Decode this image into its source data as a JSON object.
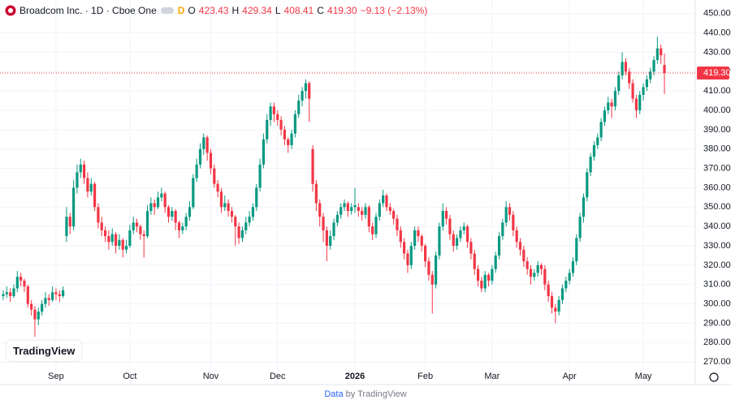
{
  "header": {
    "title": "Broadcom Inc. · 1D · Cboe One",
    "badge": "D",
    "open_label": "O",
    "open": "423.43",
    "high_label": "H",
    "high": "429.34",
    "low_label": "L",
    "low": "408.41",
    "close_label": "C",
    "close": "419.30",
    "change": "−9.13 (−2.13%)"
  },
  "logo": "TradingView",
  "footer": {
    "link": "Data",
    "text": "by TradingView"
  },
  "chart_data": {
    "type": "candlestick",
    "up_color": "#089981",
    "down_color": "#f23645",
    "grid": true,
    "ylim": [
      260,
      457
    ],
    "yticks": [
      {
        "value": 270,
        "label": "270.00"
      },
      {
        "value": 280,
        "label": "280.00"
      },
      {
        "value": 290,
        "label": "290.00"
      },
      {
        "value": 300,
        "label": "300.00"
      },
      {
        "value": 310,
        "label": "310.00"
      },
      {
        "value": 320,
        "label": "320.00"
      },
      {
        "value": 330,
        "label": "330.00"
      },
      {
        "value": 340,
        "label": "340.00"
      },
      {
        "value": 350,
        "label": "350.00"
      },
      {
        "value": 360,
        "label": "360.00"
      },
      {
        "value": 370,
        "label": "370.00"
      },
      {
        "value": 380,
        "label": "380.00"
      },
      {
        "value": 390,
        "label": "390.00"
      },
      {
        "value": 400,
        "label": "400.00"
      },
      {
        "value": 410,
        "label": "410.00"
      },
      {
        "value": 420,
        "label": "420.00"
      },
      {
        "value": 430,
        "label": "430.00"
      },
      {
        "value": 440,
        "label": "440.00"
      },
      {
        "value": 450,
        "label": "450.00"
      }
    ],
    "last_price": {
      "value": 419.3,
      "label": "419.30"
    },
    "categories": [
      null,
      null,
      null,
      null,
      null,
      null,
      null,
      null,
      null,
      null,
      null,
      null,
      null,
      null,
      null,
      "Sep",
      null,
      null,
      null,
      null,
      null,
      null,
      null,
      null,
      null,
      null,
      null,
      null,
      null,
      null,
      null,
      null,
      null,
      null,
      null,
      null,
      "Oct",
      null,
      null,
      null,
      null,
      null,
      null,
      null,
      null,
      null,
      null,
      null,
      null,
      null,
      null,
      null,
      null,
      null,
      null,
      null,
      null,
      null,
      null,
      "Nov",
      null,
      null,
      null,
      null,
      null,
      null,
      null,
      null,
      null,
      null,
      null,
      null,
      null,
      null,
      null,
      null,
      null,
      null,
      "Dec",
      null,
      null,
      null,
      null,
      null,
      null,
      null,
      null,
      null,
      null,
      null,
      null,
      null,
      null,
      null,
      null,
      null,
      null,
      null,
      null,
      null,
      "2026",
      null,
      null,
      null,
      null,
      null,
      null,
      null,
      null,
      null,
      null,
      null,
      null,
      null,
      null,
      null,
      null,
      null,
      null,
      null,
      "Feb",
      null,
      null,
      null,
      null,
      null,
      null,
      null,
      null,
      null,
      null,
      null,
      null,
      null,
      null,
      null,
      null,
      null,
      null,
      "Mar",
      null,
      null,
      null,
      null,
      null,
      null,
      null,
      null,
      null,
      null,
      null,
      null,
      null,
      null,
      null,
      null,
      null,
      null,
      null,
      null,
      null,
      "Apr",
      null,
      null,
      null,
      null,
      null,
      null,
      null,
      null,
      null,
      null,
      null,
      null,
      null,
      null,
      null,
      null,
      null,
      null,
      null,
      null,
      "May",
      null,
      null,
      null,
      null,
      null,
      null
    ],
    "candles": [
      [
        304,
        307,
        302,
        305
      ],
      [
        305,
        309,
        303,
        306
      ],
      [
        306,
        308,
        301,
        304
      ],
      [
        304,
        310,
        303,
        308
      ],
      [
        308,
        317,
        306,
        314
      ],
      [
        314,
        316,
        309,
        312
      ],
      [
        312,
        313,
        306,
        309
      ],
      [
        309,
        310,
        298,
        300
      ],
      [
        300,
        302,
        294,
        297
      ],
      [
        297,
        299,
        283,
        292
      ],
      [
        292,
        298,
        289,
        296
      ],
      [
        296,
        302,
        294,
        300
      ],
      [
        300,
        306,
        298,
        303
      ],
      [
        303,
        305,
        299,
        302
      ],
      [
        302,
        309,
        301,
        306
      ],
      [
        306,
        308,
        302,
        305
      ],
      [
        305,
        307,
        301,
        304
      ],
      [
        304,
        309,
        303,
        307
      ],
      [
        335,
        350,
        332,
        345
      ],
      [
        345,
        347,
        336,
        340
      ],
      [
        340,
        364,
        338,
        360
      ],
      [
        360,
        372,
        357,
        368
      ],
      [
        368,
        375,
        365,
        372
      ],
      [
        372,
        374,
        362,
        365
      ],
      [
        365,
        368,
        355,
        358
      ],
      [
        358,
        365,
        356,
        362
      ],
      [
        362,
        363,
        348,
        350
      ],
      [
        350,
        352,
        339,
        342
      ],
      [
        342,
        345,
        335,
        338
      ],
      [
        338,
        340,
        332,
        335
      ],
      [
        335,
        338,
        328,
        332
      ],
      [
        332,
        339,
        330,
        336
      ],
      [
        336,
        337,
        326,
        330
      ],
      [
        330,
        336,
        328,
        333
      ],
      [
        333,
        334,
        324,
        328
      ],
      [
        328,
        333,
        326,
        330
      ],
      [
        330,
        341,
        329,
        338
      ],
      [
        338,
        345,
        336,
        342
      ],
      [
        342,
        344,
        337,
        340
      ],
      [
        340,
        341,
        333,
        336
      ],
      [
        336,
        338,
        324,
        335
      ],
      [
        335,
        351,
        334,
        348
      ],
      [
        348,
        355,
        346,
        352
      ],
      [
        352,
        354,
        346,
        350
      ],
      [
        350,
        358,
        349,
        355
      ],
      [
        355,
        360,
        353,
        357
      ],
      [
        357,
        358,
        347,
        350
      ],
      [
        350,
        351,
        342,
        345
      ],
      [
        345,
        350,
        343,
        348
      ],
      [
        348,
        349,
        338,
        342
      ],
      [
        342,
        343,
        334,
        338
      ],
      [
        338,
        342,
        336,
        340
      ],
      [
        340,
        347,
        338,
        345
      ],
      [
        345,
        353,
        343,
        350
      ],
      [
        350,
        367,
        349,
        365
      ],
      [
        365,
        375,
        363,
        372
      ],
      [
        372,
        383,
        370,
        380
      ],
      [
        380,
        388,
        377,
        386
      ],
      [
        386,
        387,
        374,
        378
      ],
      [
        378,
        380,
        367,
        370
      ],
      [
        370,
        372,
        360,
        362
      ],
      [
        362,
        364,
        355,
        358
      ],
      [
        358,
        360,
        347,
        350
      ],
      [
        350,
        356,
        348,
        352
      ],
      [
        352,
        354,
        345,
        348
      ],
      [
        348,
        350,
        342,
        345
      ],
      [
        345,
        346,
        330,
        340
      ],
      [
        340,
        342,
        331,
        334
      ],
      [
        334,
        340,
        332,
        338
      ],
      [
        338,
        345,
        336,
        342
      ],
      [
        342,
        348,
        340,
        345
      ],
      [
        345,
        352,
        343,
        350
      ],
      [
        350,
        362,
        348,
        360
      ],
      [
        360,
        375,
        358,
        372
      ],
      [
        372,
        388,
        370,
        385
      ],
      [
        385,
        398,
        383,
        395
      ],
      [
        395,
        404,
        392,
        402
      ],
      [
        402,
        404,
        394,
        398
      ],
      [
        398,
        400,
        392,
        395
      ],
      [
        395,
        397,
        387,
        390
      ],
      [
        390,
        392,
        382,
        385
      ],
      [
        385,
        386,
        378,
        382
      ],
      [
        382,
        390,
        380,
        388
      ],
      [
        388,
        400,
        386,
        398
      ],
      [
        398,
        408,
        396,
        405
      ],
      [
        405,
        412,
        402,
        410
      ],
      [
        410,
        416,
        406,
        414
      ],
      [
        414,
        415,
        394,
        406
      ],
      [
        380,
        382,
        358,
        362
      ],
      [
        362,
        364,
        348,
        352
      ],
      [
        352,
        354,
        340,
        345
      ],
      [
        345,
        347,
        332,
        338
      ],
      [
        338,
        340,
        322,
        330
      ],
      [
        330,
        338,
        328,
        335
      ],
      [
        335,
        344,
        333,
        342
      ],
      [
        342,
        348,
        340,
        346
      ],
      [
        346,
        352,
        344,
        350
      ],
      [
        350,
        354,
        348,
        352
      ],
      [
        352,
        353,
        345,
        348
      ],
      [
        348,
        352,
        346,
        350
      ],
      [
        350,
        360,
        347,
        351
      ],
      [
        350,
        352,
        345,
        348
      ],
      [
        348,
        350,
        343,
        346
      ],
      [
        346,
        352,
        344,
        350
      ],
      [
        350,
        351,
        337,
        340
      ],
      [
        340,
        342,
        333,
        336
      ],
      [
        336,
        347,
        334,
        345
      ],
      [
        345,
        354,
        343,
        352
      ],
      [
        352,
        359,
        350,
        356
      ],
      [
        356,
        357,
        348,
        350
      ],
      [
        350,
        352,
        346,
        348
      ],
      [
        348,
        349,
        341,
        344
      ],
      [
        344,
        346,
        335,
        338
      ],
      [
        338,
        340,
        329,
        332
      ],
      [
        332,
        334,
        323,
        326
      ],
      [
        326,
        328,
        316,
        320
      ],
      [
        320,
        332,
        318,
        330
      ],
      [
        330,
        340,
        328,
        338
      ],
      [
        338,
        340,
        332,
        335
      ],
      [
        335,
        336,
        327,
        330
      ],
      [
        330,
        331,
        319,
        322
      ],
      [
        322,
        324,
        312,
        315
      ],
      [
        315,
        317,
        295,
        310
      ],
      [
        310,
        327,
        308,
        325
      ],
      [
        325,
        342,
        323,
        340
      ],
      [
        340,
        352,
        338,
        348
      ],
      [
        348,
        350,
        341,
        344
      ],
      [
        344,
        346,
        333,
        336
      ],
      [
        336,
        338,
        327,
        330
      ],
      [
        330,
        336,
        328,
        334
      ],
      [
        334,
        340,
        332,
        338
      ],
      [
        338,
        342,
        336,
        340
      ],
      [
        340,
        341,
        329,
        332
      ],
      [
        332,
        334,
        323,
        326
      ],
      [
        326,
        328,
        315,
        318
      ],
      [
        318,
        320,
        309,
        312
      ],
      [
        312,
        314,
        306,
        308
      ],
      [
        308,
        317,
        306,
        315
      ],
      [
        315,
        316,
        309,
        312
      ],
      [
        312,
        320,
        310,
        318
      ],
      [
        318,
        327,
        316,
        325
      ],
      [
        325,
        337,
        323,
        335
      ],
      [
        335,
        344,
        333,
        342
      ],
      [
        342,
        353,
        340,
        350
      ],
      [
        350,
        352,
        343,
        346
      ],
      [
        346,
        348,
        335,
        338
      ],
      [
        338,
        340,
        329,
        332
      ],
      [
        332,
        334,
        325,
        328
      ],
      [
        328,
        330,
        319,
        322
      ],
      [
        322,
        324,
        315,
        318
      ],
      [
        318,
        320,
        310,
        314
      ],
      [
        314,
        318,
        312,
        316
      ],
      [
        316,
        322,
        314,
        320
      ],
      [
        320,
        321,
        315,
        318
      ],
      [
        318,
        320,
        307,
        310
      ],
      [
        310,
        312,
        301,
        304
      ],
      [
        304,
        306,
        295,
        298
      ],
      [
        298,
        300,
        290,
        296
      ],
      [
        296,
        304,
        294,
        302
      ],
      [
        302,
        310,
        300,
        308
      ],
      [
        308,
        314,
        306,
        312
      ],
      [
        312,
        318,
        310,
        316
      ],
      [
        316,
        324,
        314,
        322
      ],
      [
        322,
        336,
        320,
        334
      ],
      [
        334,
        347,
        332,
        345
      ],
      [
        345,
        357,
        342,
        355
      ],
      [
        355,
        370,
        353,
        368
      ],
      [
        368,
        378,
        366,
        376
      ],
      [
        376,
        384,
        374,
        382
      ],
      [
        382,
        388,
        380,
        386
      ],
      [
        386,
        396,
        384,
        394
      ],
      [
        394,
        402,
        392,
        400
      ],
      [
        400,
        407,
        398,
        404
      ],
      [
        404,
        406,
        396,
        402
      ],
      [
        402,
        412,
        400,
        410
      ],
      [
        410,
        420,
        408,
        418
      ],
      [
        418,
        430,
        416,
        425
      ],
      [
        425,
        427,
        418,
        420
      ],
      [
        420,
        422,
        411,
        414
      ],
      [
        414,
        416,
        404,
        406
      ],
      [
        406,
        408,
        396,
        400
      ],
      [
        400,
        410,
        398,
        408
      ],
      [
        408,
        414,
        405,
        412
      ],
      [
        412,
        418,
        410,
        416
      ],
      [
        416,
        422,
        414,
        420
      ],
      [
        420,
        428,
        418,
        426
      ],
      [
        426,
        438,
        424,
        432
      ],
      [
        432,
        434,
        424,
        428.43
      ],
      [
        423.43,
        429.34,
        408.41,
        419.3
      ]
    ]
  }
}
